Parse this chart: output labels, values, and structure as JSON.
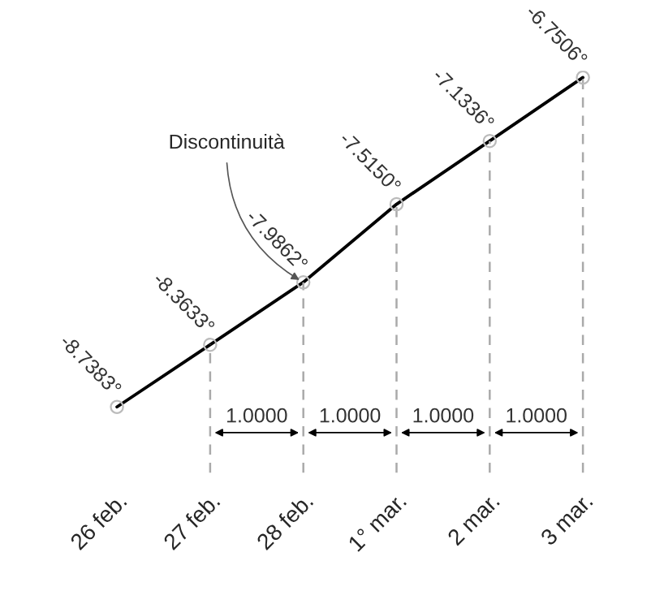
{
  "chart_data": {
    "type": "line",
    "categories": [
      "26 feb.",
      "27 feb.",
      "28 feb.",
      "1° mar.",
      "2 mar.",
      "3 mar."
    ],
    "values": [
      -8.7383,
      -8.3633,
      -7.9862,
      -7.515,
      -7.1336,
      -6.7506
    ],
    "value_labels": [
      "-8.7383°",
      "-8.3633°",
      "-7.9862°",
      "-7.5150°",
      "-7.1336°",
      "-6.7506°"
    ],
    "color": "#000000",
    "marker": "circle",
    "line_style": "solid",
    "grid": "x",
    "annotations": [
      {
        "text": "Discontinuità",
        "x": "28 feb.",
        "y": -7.9862
      },
      "1.0000",
      "1.0000",
      "1.0000",
      "1.0000"
    ]
  }
}
